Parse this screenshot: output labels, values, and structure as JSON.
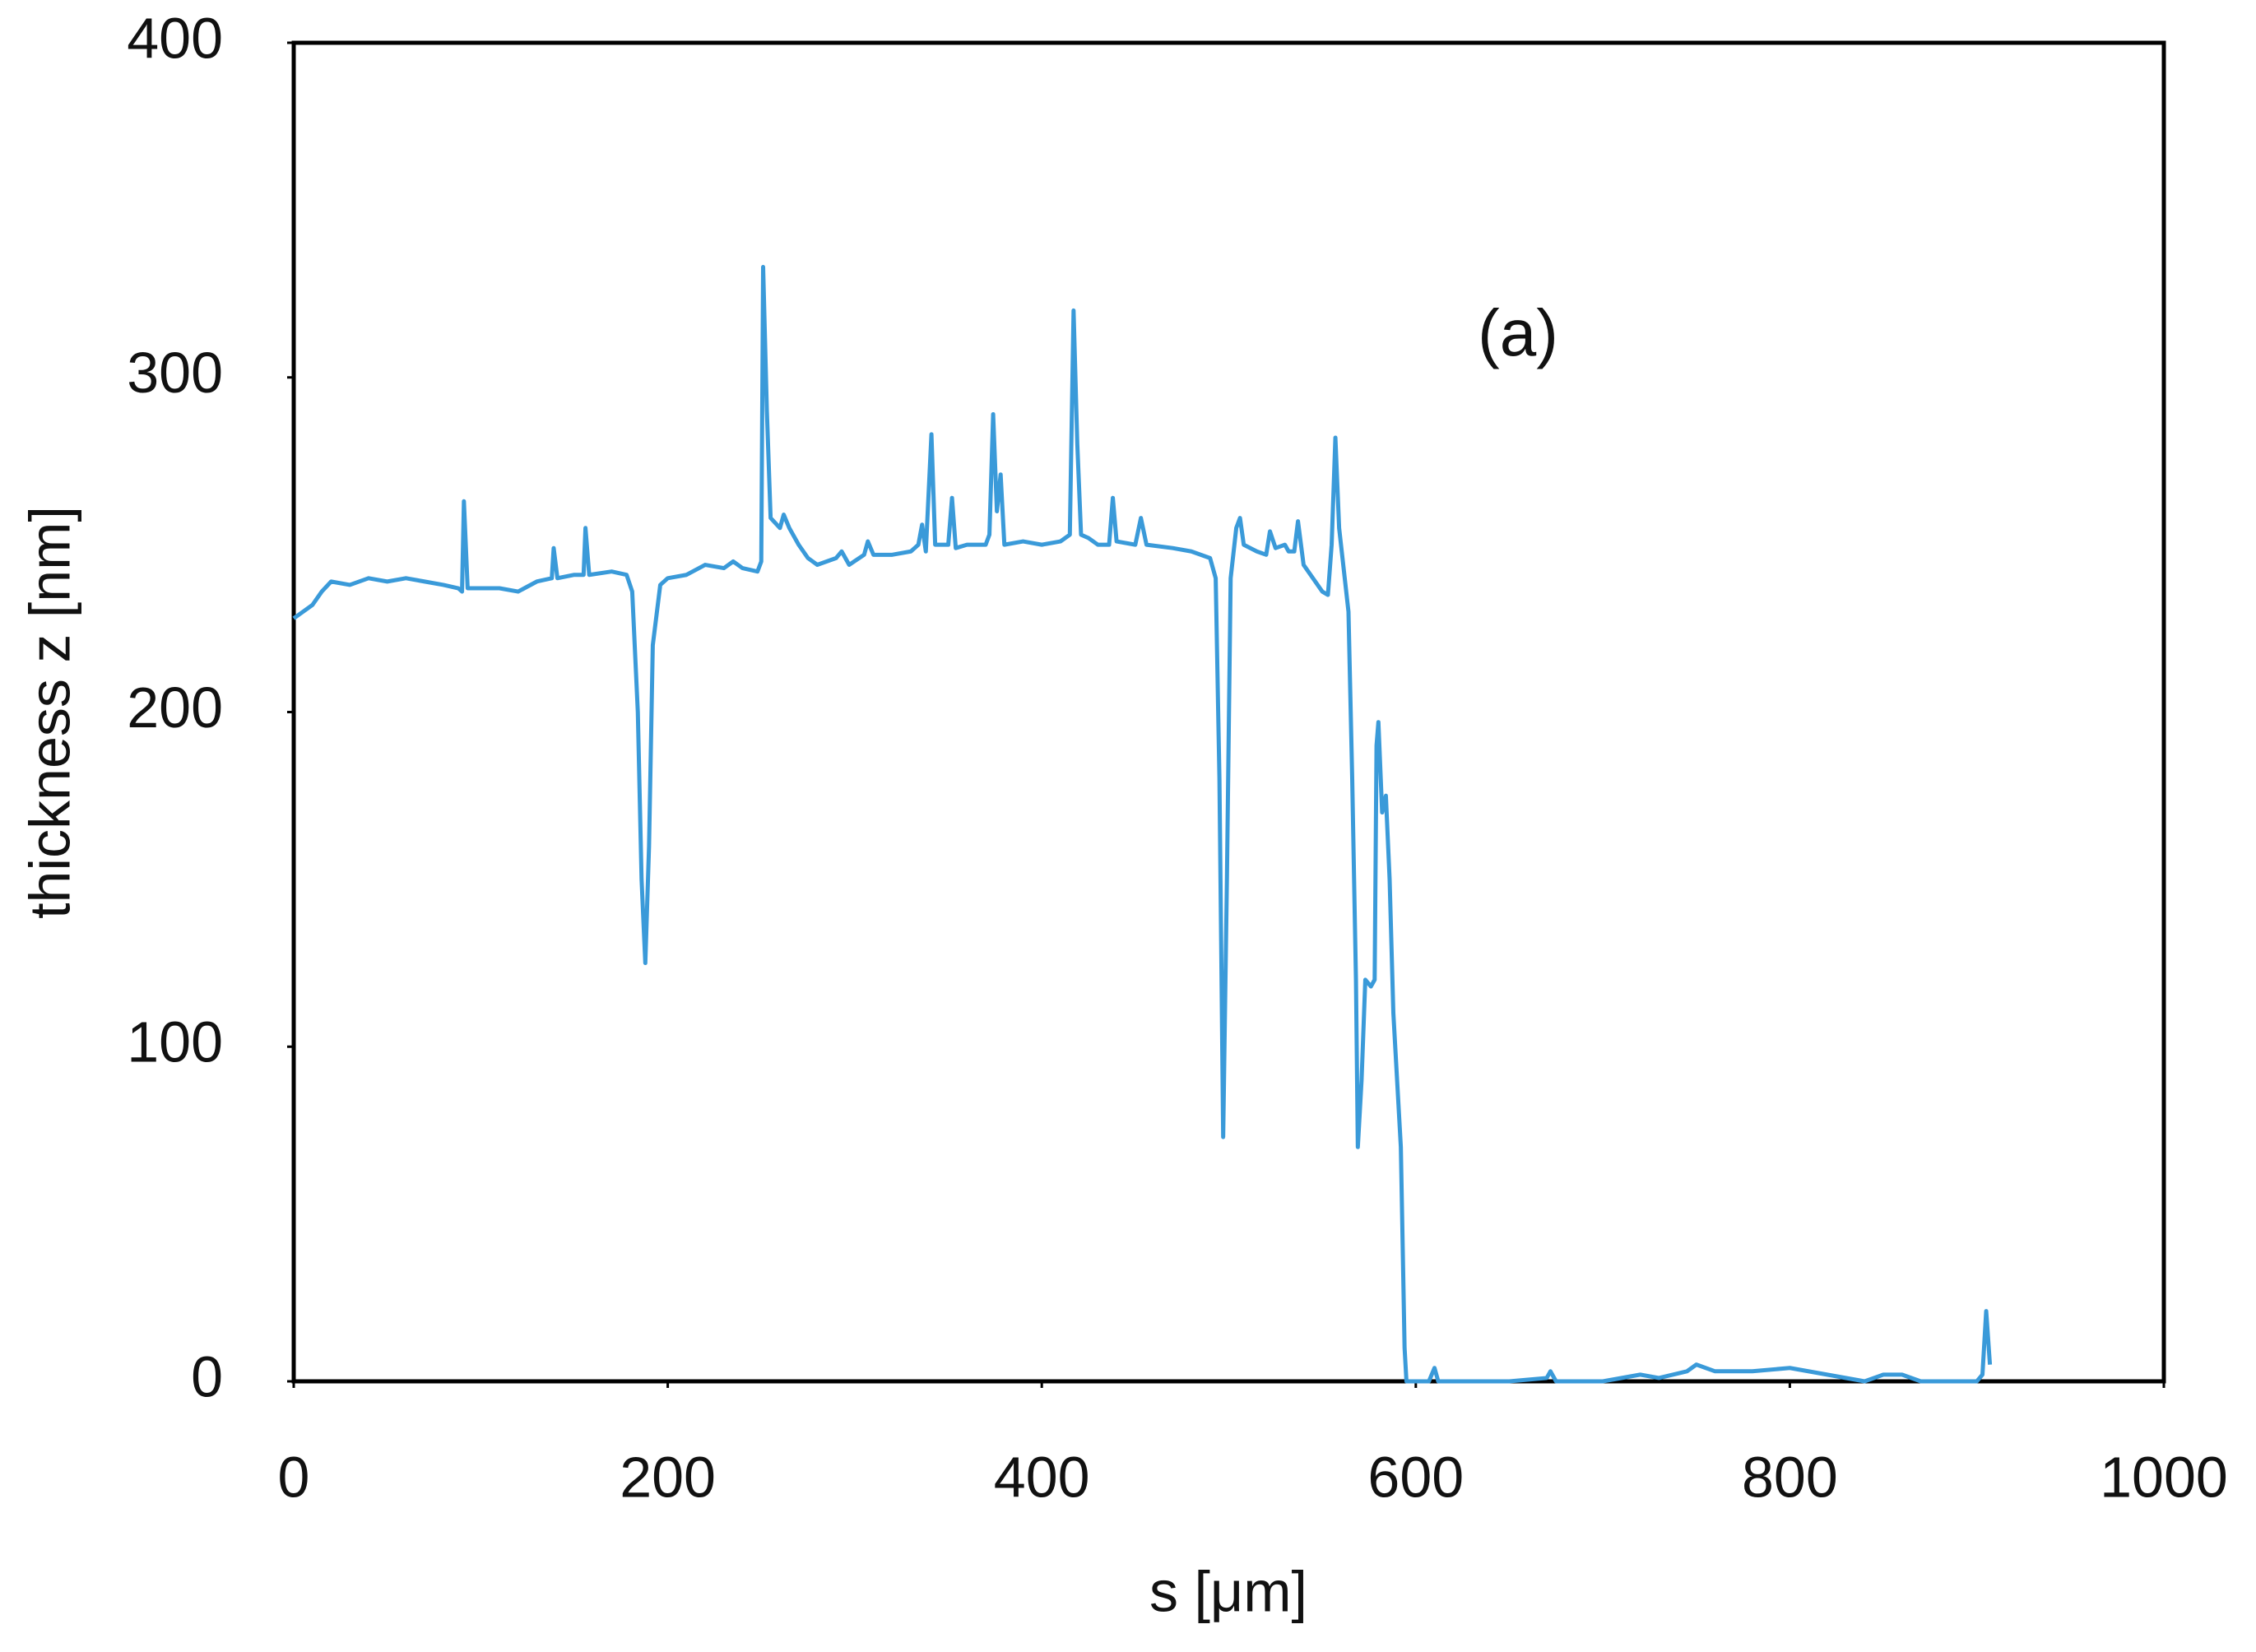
{
  "chart_data": {
    "type": "line",
    "xlabel": "s [μm]",
    "ylabel": "thickness z [nm]",
    "annotation": "(a)",
    "xlim": [
      0,
      1000
    ],
    "xticks": [
      0,
      200,
      400,
      600,
      800,
      1000
    ],
    "ylim": [
      0,
      400
    ],
    "yticks": [
      0,
      100,
      200,
      300,
      400
    ],
    "grid": false,
    "x": [
      0,
      5,
      10,
      15,
      20,
      30,
      40,
      50,
      60,
      70,
      80,
      88,
      90,
      91,
      93,
      100,
      110,
      120,
      130,
      138,
      139,
      141,
      150,
      155,
      156,
      158,
      170,
      178,
      181,
      184,
      186,
      188,
      190,
      192,
      196,
      200,
      210,
      220,
      230,
      235,
      240,
      248,
      250,
      251,
      253,
      255,
      260,
      262,
      265,
      270,
      275,
      280,
      290,
      293,
      297,
      305,
      307,
      310,
      320,
      330,
      334,
      336,
      338,
      341,
      343,
      350,
      352,
      354,
      360,
      370,
      372,
      374,
      376,
      378,
      380,
      390,
      400,
      410,
      415,
      417,
      419,
      421,
      425,
      430,
      436,
      438,
      440,
      450,
      453,
      456,
      470,
      480,
      490,
      493,
      495,
      497,
      499,
      501,
      504,
      506,
      508,
      515,
      520,
      522,
      525,
      530,
      532,
      535,
      537,
      540,
      545,
      550,
      553,
      555,
      557,
      559,
      562,
      564,
      566,
      568,
      569,
      571,
      573,
      576,
      578,
      579,
      580,
      582,
      584,
      586,
      588,
      590,
      592,
      593,
      594,
      595,
      600,
      607,
      610,
      612,
      650,
      670,
      672,
      675,
      700,
      720,
      730,
      745,
      750,
      760,
      780,
      800,
      820,
      840,
      850,
      860,
      870,
      880,
      900,
      903,
      905,
      907
    ],
    "series": [
      {
        "color": "#3a9ad9",
        "values": [
          228,
          230,
          232,
          236,
          239,
          238,
          240,
          239,
          240,
          239,
          238,
          237,
          236,
          263,
          237,
          237,
          237,
          236,
          239,
          240,
          249,
          240,
          241,
          241,
          255,
          241,
          242,
          241,
          236,
          200,
          150,
          125,
          160,
          220,
          238,
          240,
          241,
          244,
          243,
          245,
          243,
          242,
          245,
          333,
          290,
          258,
          255,
          259,
          255,
          250,
          246,
          244,
          246,
          248,
          244,
          247,
          251,
          247,
          247,
          248,
          250,
          256,
          248,
          283,
          250,
          250,
          264,
          249,
          250,
          250,
          253,
          289,
          260,
          271,
          250,
          251,
          250,
          251,
          253,
          320,
          280,
          253,
          252,
          250,
          250,
          264,
          251,
          250,
          258,
          250,
          249,
          248,
          246,
          240,
          180,
          73,
          150,
          240,
          255,
          258,
          250,
          248,
          247,
          254,
          249,
          250,
          248,
          248,
          257,
          244,
          240,
          236,
          235,
          250,
          282,
          255,
          240,
          230,
          180,
          120,
          70,
          90,
          120,
          118,
          120,
          190,
          197,
          170,
          175,
          150,
          110,
          90,
          70,
          40,
          10,
          0,
          0,
          0,
          4,
          0,
          0,
          1,
          3,
          0,
          0,
          2,
          1,
          3,
          5,
          3,
          3,
          4,
          2,
          0,
          2,
          2,
          0,
          0,
          0,
          2,
          21,
          5
        ]
      }
    ]
  }
}
